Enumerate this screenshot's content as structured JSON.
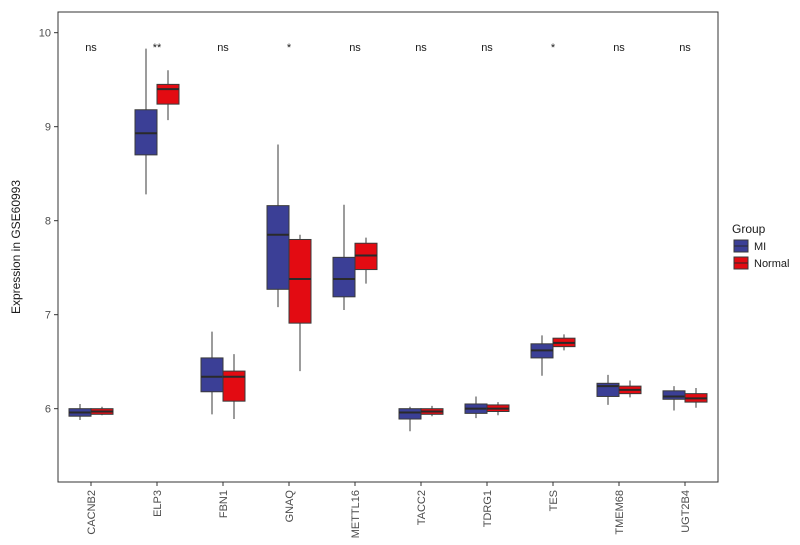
{
  "chart_data": {
    "type": "boxplot",
    "ylabel": "Expression in GSE60993",
    "xlabel": "",
    "ylim": [
      5.22,
      10.22
    ],
    "yticks": [
      6,
      7,
      8,
      9,
      10
    ],
    "ytick_labels": [
      "6",
      "7",
      "8",
      "9",
      "10"
    ],
    "categories": [
      "CACNB2",
      "ELP3",
      "FBN1",
      "GNAQ",
      "METTL16",
      "TACC2",
      "TDRG1",
      "TES",
      "TMEM68",
      "UGT2B4"
    ],
    "significance": [
      "ns",
      "**",
      "ns",
      "*",
      "ns",
      "ns",
      "ns",
      "*",
      "ns",
      "ns"
    ],
    "significance_y": 9.85,
    "legend": {
      "title": "Group",
      "position": "right",
      "entries": [
        {
          "name": "MI",
          "color": "#3b3f96"
        },
        {
          "name": "Normal",
          "color": "#e30b12"
        }
      ]
    },
    "series": [
      {
        "name": "MI",
        "color": "#3b3f96",
        "boxes": [
          {
            "whisker_low": 5.88,
            "q1": 5.92,
            "median": 5.96,
            "q3": 6.0,
            "whisker_high": 6.05
          },
          {
            "whisker_low": 8.28,
            "q1": 8.7,
            "median": 8.93,
            "q3": 9.18,
            "whisker_high": 9.83
          },
          {
            "whisker_low": 5.94,
            "q1": 6.18,
            "median": 6.34,
            "q3": 6.54,
            "whisker_high": 6.82
          },
          {
            "whisker_low": 7.08,
            "q1": 7.27,
            "median": 7.85,
            "q3": 8.16,
            "whisker_high": 8.81
          },
          {
            "whisker_low": 7.05,
            "q1": 7.19,
            "median": 7.38,
            "q3": 7.61,
            "whisker_high": 8.17
          },
          {
            "whisker_low": 5.76,
            "q1": 5.89,
            "median": 5.96,
            "q3": 6.0,
            "whisker_high": 6.02
          },
          {
            "whisker_low": 5.9,
            "q1": 5.95,
            "median": 6.0,
            "q3": 6.05,
            "whisker_high": 6.13
          },
          {
            "whisker_low": 6.35,
            "q1": 6.54,
            "median": 6.62,
            "q3": 6.69,
            "whisker_high": 6.78
          },
          {
            "whisker_low": 6.04,
            "q1": 6.13,
            "median": 6.24,
            "q3": 6.27,
            "whisker_high": 6.36
          },
          {
            "whisker_low": 5.98,
            "q1": 6.1,
            "median": 6.13,
            "q3": 6.19,
            "whisker_high": 6.24
          }
        ]
      },
      {
        "name": "Normal",
        "color": "#e30b12",
        "boxes": [
          {
            "whisker_low": 5.93,
            "q1": 5.94,
            "median": 5.97,
            "q3": 6.0,
            "whisker_high": 6.02
          },
          {
            "whisker_low": 9.07,
            "q1": 9.24,
            "median": 9.4,
            "q3": 9.45,
            "whisker_high": 9.6
          },
          {
            "whisker_low": 5.89,
            "q1": 6.08,
            "median": 6.34,
            "q3": 6.4,
            "whisker_high": 6.58
          },
          {
            "whisker_low": 6.4,
            "q1": 6.91,
            "median": 7.38,
            "q3": 7.8,
            "whisker_high": 7.85
          },
          {
            "whisker_low": 7.33,
            "q1": 7.48,
            "median": 7.63,
            "q3": 7.76,
            "whisker_high": 7.82
          },
          {
            "whisker_low": 5.92,
            "q1": 5.94,
            "median": 5.97,
            "q3": 6.0,
            "whisker_high": 6.03
          },
          {
            "whisker_low": 5.93,
            "q1": 5.97,
            "median": 6.0,
            "q3": 6.04,
            "whisker_high": 6.07
          },
          {
            "whisker_low": 6.62,
            "q1": 6.66,
            "median": 6.7,
            "q3": 6.75,
            "whisker_high": 6.79
          },
          {
            "whisker_low": 6.12,
            "q1": 6.16,
            "median": 6.2,
            "q3": 6.24,
            "whisker_high": 6.3
          },
          {
            "whisker_low": 6.01,
            "q1": 6.07,
            "median": 6.11,
            "q3": 6.16,
            "whisker_high": 6.22
          }
        ]
      }
    ]
  }
}
